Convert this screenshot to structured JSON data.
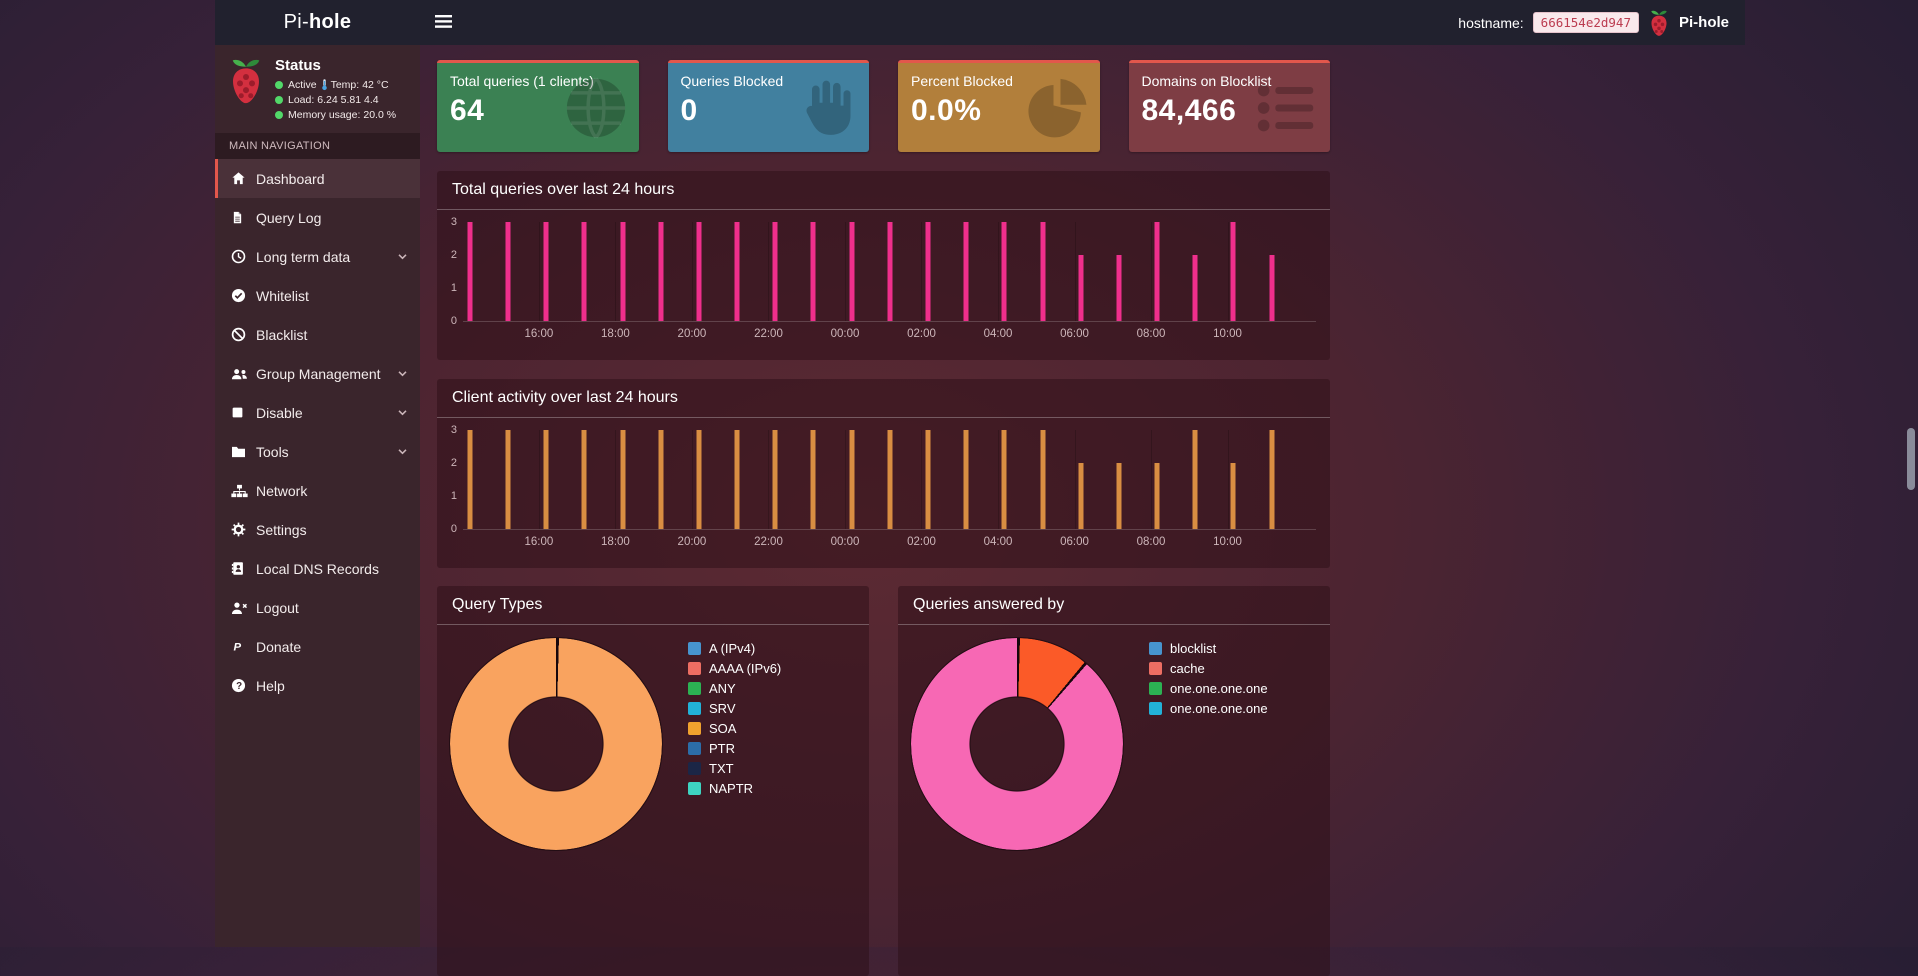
{
  "theme": {
    "accent": "#e2574c",
    "status_green": "#52d869",
    "topbar_bg": "#21212e",
    "sidebar_bg": "#3a252c"
  },
  "topbar": {
    "brand_light": "Pi-",
    "brand_bold": "hole",
    "hostname_label": "hostname:",
    "hostname_value": "666154e2d947",
    "logo_title": "Pi-hole"
  },
  "sidebar": {
    "status": {
      "title": "Status",
      "active_label": "Active",
      "temp_label": "Temp:",
      "temp_value": "42 °C",
      "load_label": "Load:",
      "load_values": "6.24  5.81  4.4",
      "memory_label": "Memory usage:",
      "memory_value": "20.0 %"
    },
    "nav_header": "MAIN NAVIGATION",
    "items": [
      {
        "label": "Dashboard",
        "icon": "home",
        "active": true
      },
      {
        "label": "Query Log",
        "icon": "file"
      },
      {
        "label": "Long term data",
        "icon": "clock",
        "expandable": true
      },
      {
        "label": "Whitelist",
        "icon": "check-circle"
      },
      {
        "label": "Blacklist",
        "icon": "ban"
      },
      {
        "label": "Group Management",
        "icon": "users",
        "expandable": true
      },
      {
        "label": "Disable",
        "icon": "stop",
        "expandable": true
      },
      {
        "label": "Tools",
        "icon": "folder",
        "expandable": true
      },
      {
        "label": "Network",
        "icon": "sitemap"
      },
      {
        "label": "Settings",
        "icon": "gears"
      },
      {
        "label": "Local DNS Records",
        "icon": "address-book"
      },
      {
        "label": "Logout",
        "icon": "user-logout"
      },
      {
        "label": "Donate",
        "icon": "paypal"
      },
      {
        "label": "Help",
        "icon": "question"
      }
    ]
  },
  "cards": [
    {
      "title": "Total queries (1 clients)",
      "value": "64",
      "color": "#3b8153",
      "icon": "globe"
    },
    {
      "title": "Queries Blocked",
      "value": "0",
      "color": "#41809f",
      "icon": "hand"
    },
    {
      "title": "Percent Blocked",
      "value": "0.0%",
      "color": "#b27f3b",
      "icon": "pie"
    },
    {
      "title": "Domains on Blocklist",
      "value": "84,466",
      "color": "#7e3d44",
      "icon": "list"
    }
  ],
  "chart_data": [
    {
      "id": "total_queries_24h",
      "type": "bar",
      "title": "Total queries over last 24 hours",
      "x_ticks": [
        "16:00",
        "18:00",
        "20:00",
        "22:00",
        "00:00",
        "02:00",
        "04:00",
        "06:00",
        "08:00",
        "10:00"
      ],
      "y_ticks": [
        0,
        1,
        2,
        3
      ],
      "ylim": [
        0,
        3
      ],
      "grid": "vertical",
      "bar_color": "#ef2f8c",
      "values": [
        3,
        3,
        3,
        3,
        3,
        3,
        3,
        3,
        3,
        3,
        3,
        3,
        3,
        3,
        3,
        3,
        2,
        2,
        3,
        2,
        3,
        2
      ]
    },
    {
      "id": "client_activity_24h",
      "type": "bar",
      "title": "Client activity over last 24 hours",
      "x_ticks": [
        "16:00",
        "18:00",
        "20:00",
        "22:00",
        "00:00",
        "02:00",
        "04:00",
        "06:00",
        "08:00",
        "10:00"
      ],
      "y_ticks": [
        0,
        1,
        2,
        3
      ],
      "ylim": [
        0,
        3
      ],
      "grid": "vertical",
      "bar_color": "#d98e42",
      "values": [
        3,
        3,
        3,
        3,
        3,
        3,
        3,
        3,
        3,
        3,
        3,
        3,
        3,
        3,
        3,
        3,
        2,
        2,
        2,
        3,
        2,
        3
      ]
    },
    {
      "id": "query_types",
      "type": "pie",
      "title": "Query Types",
      "legend_position": "right",
      "legend": [
        {
          "label": "A (IPv4)",
          "color": "#4794ce"
        },
        {
          "label": "AAAA (IPv6)",
          "color": "#ed6e63"
        },
        {
          "label": "ANY",
          "color": "#2cb253"
        },
        {
          "label": "SRV",
          "color": "#22b2d8"
        },
        {
          "label": "SOA",
          "color": "#f0a22e"
        },
        {
          "label": "PTR",
          "color": "#2c6da8"
        },
        {
          "label": "TXT",
          "color": "#1b2646"
        },
        {
          "label": "NAPTR",
          "color": "#3ed4c1"
        }
      ],
      "segments": [
        {
          "label": "SOA",
          "pct": 100,
          "color": "#f9a35f"
        }
      ]
    },
    {
      "id": "queries_answered_by",
      "type": "pie",
      "title": "Queries answered by",
      "legend_position": "right",
      "legend": [
        {
          "label": "blocklist",
          "color": "#4794ce"
        },
        {
          "label": "cache",
          "color": "#ed6e63"
        },
        {
          "label": "one.one.one.one",
          "color": "#2cb253"
        },
        {
          "label": "one.one.one.one",
          "color": "#22b2d8"
        }
      ],
      "segments": [
        {
          "label": "cache",
          "pct": 11,
          "color": "#fb5a28"
        },
        {
          "label": "one.one.one.one",
          "pct": 89,
          "color": "#f768b4"
        }
      ]
    }
  ]
}
